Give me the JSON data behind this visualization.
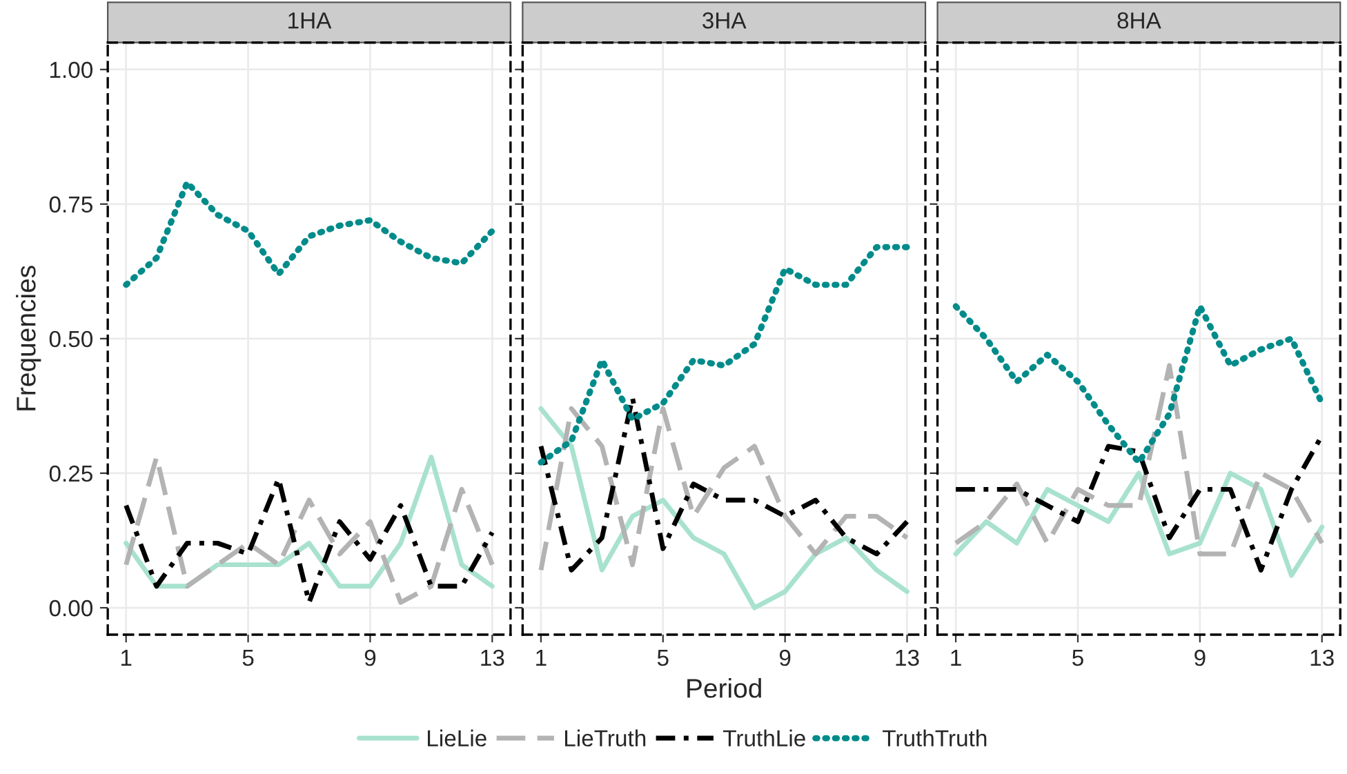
{
  "chart_data": [
    {
      "type": "line",
      "title": "1HA",
      "ylabel": "Frequencies",
      "x": [
        1,
        2,
        3,
        4,
        5,
        6,
        7,
        8,
        9,
        10,
        11,
        12,
        13
      ],
      "xlim": [
        0.4,
        13.6
      ],
      "xticks": [
        1,
        5,
        9,
        13
      ],
      "ylim": [
        -0.05,
        1.05
      ],
      "yticks": [
        {
          "value": 0,
          "label": "0.00"
        },
        0.25,
        {
          "value": 0.5,
          "label": "0.50"
        },
        0.75,
        {
          "value": 1,
          "label": "1.00"
        }
      ],
      "grid": true,
      "legend": "bottom",
      "series": [
        {
          "name": "LieLie",
          "color": "#a8e2cf",
          "line_style": "solid",
          "values": [
            0.12,
            0.04,
            0.04,
            0.08,
            0.08,
            0.08,
            0.12,
            0.04,
            0.04,
            0.12,
            0.28,
            0.08,
            0.04
          ]
        },
        {
          "name": "LieTruth",
          "color": "#b3b3b3",
          "line_style": "dashed",
          "values": [
            0.08,
            0.28,
            0.04,
            0.08,
            0.12,
            0.08,
            0.2,
            0.1,
            0.16,
            0.01,
            0.04,
            0.22,
            0.08
          ]
        },
        {
          "name": "TruthLie",
          "color": "#000000",
          "line_style": "dashdot",
          "values": [
            0.19,
            0.04,
            0.12,
            0.12,
            0.1,
            0.24,
            0.01,
            0.16,
            0.09,
            0.19,
            0.04,
            0.04,
            0.14
          ]
        },
        {
          "name": "TruthTruth",
          "color": "#008b8b",
          "line_style": "dotted",
          "values": [
            0.6,
            0.65,
            0.79,
            0.73,
            0.7,
            0.62,
            0.69,
            0.71,
            0.72,
            0.68,
            0.65,
            0.64,
            0.7
          ]
        }
      ]
    },
    {
      "type": "line",
      "title": "3HA",
      "xlabel": "Period",
      "x": [
        1,
        2,
        3,
        4,
        5,
        6,
        7,
        8,
        9,
        10,
        11,
        12,
        13
      ],
      "xlim": [
        0.4,
        13.6
      ],
      "xticks": [
        1,
        5,
        9,
        13
      ],
      "ylim": [
        -0.05,
        1.05
      ],
      "grid": true,
      "tick_labels": "x",
      "series": [
        {
          "color": "#a8e2cf",
          "line_style": "solid",
          "values": [
            0.37,
            0.3,
            0.07,
            0.17,
            0.2,
            0.13,
            0.1,
            0.0,
            0.03,
            0.1,
            0.13,
            0.07,
            0.03
          ]
        },
        {
          "color": "#b3b3b3",
          "line_style": "dashed",
          "values": [
            0.07,
            0.37,
            0.3,
            0.08,
            0.37,
            0.17,
            0.26,
            0.3,
            0.17,
            0.1,
            0.17,
            0.17,
            0.13
          ]
        },
        {
          "color": "#000000",
          "line_style": "dashdot",
          "values": [
            0.3,
            0.07,
            0.13,
            0.39,
            0.11,
            0.23,
            0.2,
            0.2,
            0.17,
            0.2,
            0.13,
            0.1,
            0.16
          ]
        },
        {
          "color": "#008b8b",
          "line_style": "dotted",
          "values": [
            0.27,
            0.31,
            0.46,
            0.35,
            0.38,
            0.46,
            0.45,
            0.49,
            0.63,
            0.6,
            0.6,
            0.67,
            0.67
          ]
        }
      ]
    },
    {
      "type": "line",
      "title": "8HA",
      "x": [
        1,
        2,
        3,
        4,
        5,
        6,
        7,
        8,
        9,
        10,
        11,
        12,
        13
      ],
      "xlim": [
        0.4,
        13.6
      ],
      "xticks": [
        1,
        5,
        9,
        13
      ],
      "ylim": [
        -0.05,
        1.05
      ],
      "grid": true,
      "tick_labels": "x",
      "series": [
        {
          "color": "#a8e2cf",
          "line_style": "solid",
          "values": [
            0.1,
            0.16,
            0.12,
            0.22,
            0.19,
            0.16,
            0.25,
            0.1,
            0.12,
            0.25,
            0.22,
            0.06,
            0.15
          ]
        },
        {
          "color": "#b3b3b3",
          "line_style": "dashed",
          "values": [
            0.12,
            0.16,
            0.23,
            0.12,
            0.22,
            0.19,
            0.19,
            0.45,
            0.1,
            0.1,
            0.25,
            0.22,
            0.12
          ]
        },
        {
          "color": "#000000",
          "line_style": "dashdot",
          "values": [
            0.22,
            0.22,
            0.22,
            0.19,
            0.16,
            0.3,
            0.29,
            0.13,
            0.22,
            0.22,
            0.07,
            0.22,
            0.32
          ]
        },
        {
          "color": "#008b8b",
          "line_style": "dotted",
          "values": [
            0.56,
            0.5,
            0.42,
            0.47,
            0.42,
            0.34,
            0.27,
            0.36,
            0.56,
            0.45,
            0.48,
            0.5,
            0.38
          ]
        }
      ]
    }
  ]
}
